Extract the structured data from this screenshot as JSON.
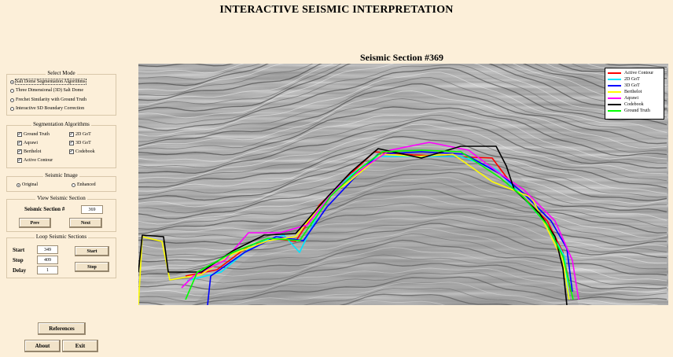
{
  "app": {
    "title": "INTERACTIVE SEISMIC INTERPRETATION"
  },
  "select_mode": {
    "title": "Select Mode",
    "options": [
      {
        "label": "Salt Dome Segmentation Algorithms",
        "selected": true
      },
      {
        "label": "Three Dimensional (3D) Salt Dome",
        "selected": false
      },
      {
        "label": "Frechet Similarity with Ground Truth",
        "selected": false
      },
      {
        "label": "Interactive SD Boundary Correction",
        "selected": false
      }
    ]
  },
  "segmentation": {
    "title": "Segmentation Algorithms",
    "items": [
      {
        "label": "Ground Truth",
        "checked": true
      },
      {
        "label": "2D GoT",
        "checked": true
      },
      {
        "label": "Aqrawi",
        "checked": true
      },
      {
        "label": "3D GoT",
        "checked": true
      },
      {
        "label": "Berthelot",
        "checked": true
      },
      {
        "label": "Codebook",
        "checked": true
      },
      {
        "label": "Active Contour",
        "checked": true
      }
    ]
  },
  "seismic_image": {
    "title": "Seismic Image",
    "options": [
      {
        "label": "Original",
        "selected": true
      },
      {
        "label": "Enhanced",
        "selected": false
      }
    ]
  },
  "view_section": {
    "title": "View Seismic Section",
    "label": "Seismic Section #",
    "value": "369",
    "prev": "Prev",
    "next": "Next"
  },
  "loop_section": {
    "title": "Loop Seismic Sections",
    "start_label": "Start",
    "start_value": "349",
    "stop_label": "Stop",
    "stop_value": "409",
    "delay_label": "Delay",
    "delay_value": "1",
    "start_button": "Start",
    "stop_button": "Stop"
  },
  "footer": {
    "references": "References",
    "about": "About",
    "exit": "Exit"
  },
  "plot": {
    "title": "Seismic Section #369",
    "legend": [
      {
        "label": "Active Contour",
        "color": "#ff0000"
      },
      {
        "label": "2D GoT",
        "color": "#00e5ff"
      },
      {
        "label": "3D GoT",
        "color": "#0000ff"
      },
      {
        "label": "Berthelot",
        "color": "#ffff00"
      },
      {
        "label": "Aqrawi",
        "color": "#ff00ff"
      },
      {
        "label": "Codebook",
        "color": "#000000"
      },
      {
        "label": "Ground Truth",
        "color": "#00ff00"
      }
    ]
  }
}
